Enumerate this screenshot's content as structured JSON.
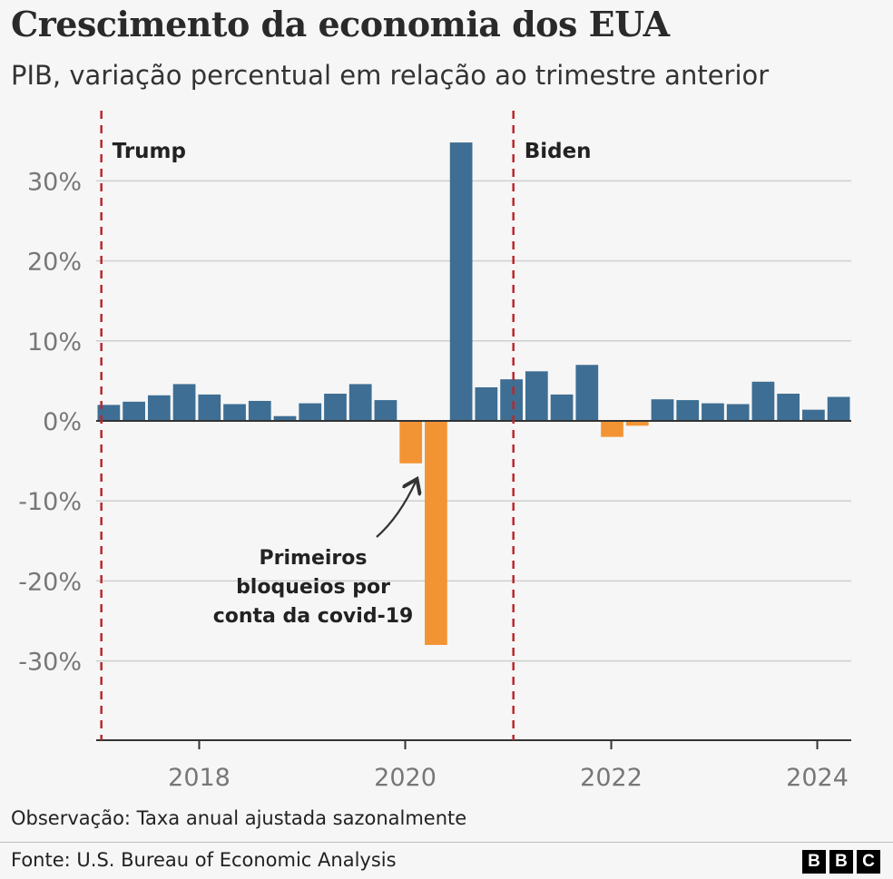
{
  "header": {
    "title": "Crescimento da economia dos EUA",
    "subtitle": "PIB, variação percentual em relação ao trimestre anterior"
  },
  "footer": {
    "note": "Observação: Taxa anual ajustada sazonalmente",
    "source": "Fonte: U.S. Bureau of Economic Analysis",
    "logo_letters": [
      "B",
      "B",
      "C"
    ]
  },
  "chart_data": {
    "type": "bar",
    "title": "Crescimento da economia dos EUA",
    "subtitle": "PIB, variação percentual em relação ao trimestre anterior",
    "xlabel": "",
    "ylabel": "",
    "ylim": [
      -40,
      40
    ],
    "grid": true,
    "colors": {
      "positive": "#3e6e93",
      "negative": "#f39434",
      "gridline": "#cfcfcf",
      "zeroline": "#333333",
      "marker": "#b8282e"
    },
    "categories": [
      "2017 T1",
      "2017 T2",
      "2017 T3",
      "2017 T4",
      "2018 T1",
      "2018 T2",
      "2018 T3",
      "2018 T4",
      "2019 T1",
      "2019 T2",
      "2019 T3",
      "2019 T4",
      "2020 T1",
      "2020 T2",
      "2020 T3",
      "2020 T4",
      "2021 T1",
      "2021 T2",
      "2021 T3",
      "2021 T4",
      "2022 T1",
      "2022 T2",
      "2022 T3",
      "2022 T4",
      "2023 T1",
      "2023 T2",
      "2023 T3",
      "2023 T4",
      "2024 T1",
      "2024 T2"
    ],
    "values": [
      2.0,
      2.4,
      3.2,
      4.6,
      3.3,
      2.1,
      2.5,
      0.6,
      2.2,
      3.4,
      4.6,
      2.6,
      -5.3,
      -28.0,
      34.8,
      4.2,
      5.2,
      6.2,
      3.3,
      7.0,
      -2.0,
      -0.6,
      2.7,
      2.6,
      2.2,
      2.1,
      4.9,
      3.4,
      1.4,
      3.0
    ],
    "y_ticks": [
      {
        "value": 30,
        "label": "30%"
      },
      {
        "value": 20,
        "label": "20%"
      },
      {
        "value": 10,
        "label": "10%"
      },
      {
        "value": 0,
        "label": "0%"
      },
      {
        "value": -10,
        "label": "-10%"
      },
      {
        "value": -20,
        "label": "-20%"
      },
      {
        "value": -30,
        "label": "-30%"
      }
    ],
    "x_ticks": [
      {
        "year": 2018,
        "label": "2018"
      },
      {
        "year": 2020,
        "label": "2020"
      },
      {
        "year": 2022,
        "label": "2022"
      },
      {
        "year": 2024,
        "label": "2024"
      }
    ],
    "x_start_year": 2017,
    "x_end_year": 2024.33,
    "markers": [
      {
        "year": 2017.05,
        "label": "Trump"
      },
      {
        "year": 2021.05,
        "label": "Biden"
      }
    ],
    "annotations": [
      {
        "text_lines": [
          "Primeiros",
          "bloqueios por",
          "conta da covid-19"
        ],
        "target_index": 13
      }
    ]
  }
}
